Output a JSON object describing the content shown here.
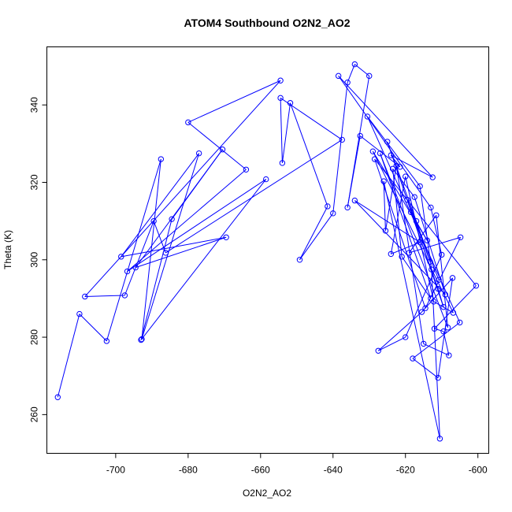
{
  "chart_data": {
    "type": "line",
    "title": "ATOM4 Southbound O2N2_AO2",
    "xlabel": "O2N2_AO2",
    "ylabel": "Theta (K)",
    "xlim": [
      -719,
      -597
    ],
    "ylim": [
      250,
      355
    ],
    "xticks": [
      -700,
      -680,
      -660,
      -640,
      -620,
      -600
    ],
    "yticks": [
      260,
      280,
      300,
      320,
      340
    ],
    "marker": "open-circle",
    "grid": false,
    "legend": "none",
    "colors": {
      "series": "#0000ff",
      "axes": "#000000",
      "background": "#ffffff"
    },
    "series": [
      {
        "points": [
          [
            -716,
            264.5
          ],
          [
            -710,
            286
          ],
          [
            -702.5,
            279
          ],
          [
            -687.5,
            326
          ],
          [
            -692.8,
            279.5
          ],
          [
            -677,
            327.5
          ],
          [
            -698.5,
            300.8
          ],
          [
            -669.5,
            305.8
          ],
          [
            -694.5,
            298
          ],
          [
            -670.5,
            328.5
          ],
          [
            -684.5,
            310.5
          ],
          [
            -693,
            279.3
          ],
          [
            -658.5,
            320.8
          ],
          [
            -696.8,
            297
          ],
          [
            -664,
            323.3
          ],
          [
            -680,
            335.5
          ],
          [
            -654.5,
            346.3
          ],
          [
            -708.5,
            290.5
          ],
          [
            -697.5,
            290.8
          ],
          [
            -689.5,
            310
          ],
          [
            -686.2,
            301.8
          ],
          [
            -637.5,
            331
          ],
          [
            -654.5,
            341.8
          ],
          [
            -654,
            325
          ],
          [
            -651.8,
            340.5
          ],
          [
            -641.5,
            313.8
          ],
          [
            -649.2,
            300
          ],
          [
            -640,
            312
          ],
          [
            -636,
            345.8
          ],
          [
            -634,
            350.5
          ],
          [
            -630,
            347.5
          ],
          [
            -636,
            313.5
          ],
          [
            -632.5,
            332
          ],
          [
            -621.5,
            324
          ],
          [
            -624,
            327
          ],
          [
            -612.5,
            321.3
          ],
          [
            -638.5,
            347.5
          ],
          [
            -613,
            313.5
          ],
          [
            -610,
            301.3
          ],
          [
            -620,
            280
          ],
          [
            -627.5,
            276.5
          ],
          [
            -615.5,
            286.5
          ],
          [
            -607,
            295.3
          ],
          [
            -611,
            269.5
          ],
          [
            -618,
            274.5
          ],
          [
            -605,
            283.8
          ],
          [
            -630.5,
            337
          ],
          [
            -616,
            319
          ],
          [
            -612.8,
            297.5
          ],
          [
            -610.5,
            253.8
          ],
          [
            -626,
            320.3
          ],
          [
            -625.5,
            307.5
          ],
          [
            -622.5,
            324.3
          ],
          [
            -615,
            278.3
          ],
          [
            -608,
            275.3
          ],
          [
            -609.5,
            281.5
          ],
          [
            -612,
            282.2
          ],
          [
            -600.5,
            293.3
          ],
          [
            -628.5,
            326
          ],
          [
            -614.5,
            287.5
          ],
          [
            -604.8,
            305.8
          ],
          [
            -619,
            301.8
          ],
          [
            -611.5,
            311.5
          ],
          [
            -608.3,
            282.5
          ],
          [
            -627,
            327.5
          ],
          [
            -613,
            290
          ],
          [
            -621,
            300.8
          ],
          [
            -623.5,
            323.5
          ],
          [
            -617.5,
            316.2
          ],
          [
            -609,
            291
          ],
          [
            -634,
            315.3
          ],
          [
            -616,
            304.5
          ],
          [
            -624,
            301.5
          ],
          [
            -620,
            321.5
          ],
          [
            -612.2,
            289.2
          ],
          [
            -606.8,
            286.3
          ],
          [
            -629,
            328
          ],
          [
            -614,
            305
          ],
          [
            -618.5,
            312.3
          ],
          [
            -611,
            292.5
          ],
          [
            -609.5,
            287.8
          ],
          [
            -625,
            330.5
          ],
          [
            -617,
            310
          ],
          [
            -613.2,
            299.5
          ],
          [
            -619.5,
            315.5
          ],
          [
            -610.8,
            294.8
          ]
        ]
      }
    ]
  }
}
